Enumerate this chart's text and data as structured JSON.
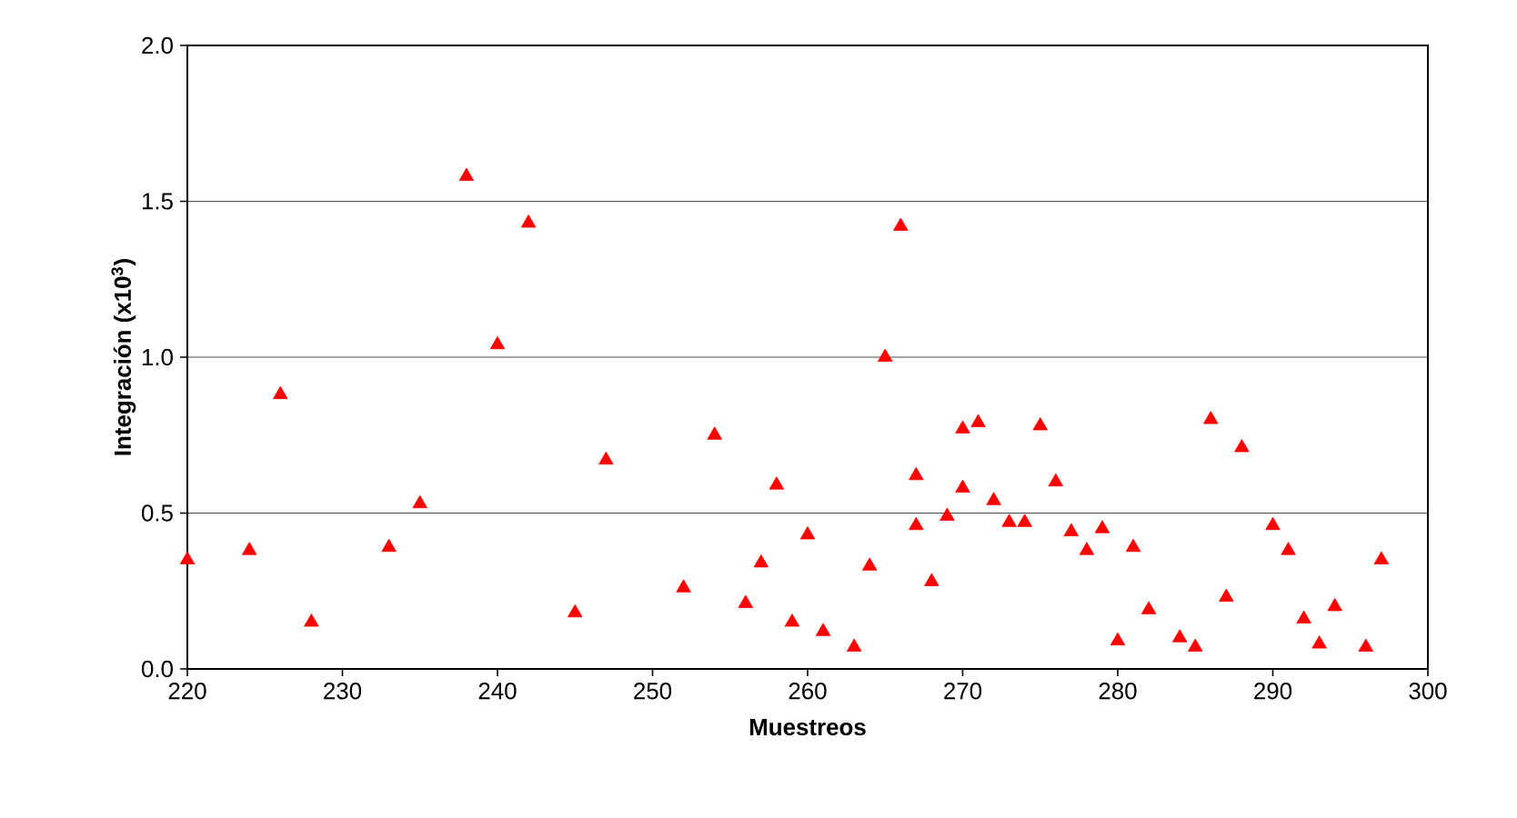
{
  "chart_data": {
    "type": "scatter",
    "xlabel": "Muestreos",
    "ylabel": "Integración (x10$^{3}$)",
    "xlim": [
      220,
      300
    ],
    "ylim": [
      0,
      2.0
    ],
    "xticks": [
      220,
      230,
      240,
      250,
      260,
      270,
      280,
      290,
      300
    ],
    "yticks": [
      {
        "value": 0,
        "label": "0.0"
      },
      {
        "value": 0.5,
        "label": "0.5"
      },
      {
        "value": 1.0,
        "label": "1.0"
      },
      {
        "value": 1.5,
        "label": "1.5"
      },
      {
        "value": 2.0,
        "label": "2.0"
      }
    ],
    "grid": "y",
    "marker": "triangle",
    "series": [
      {
        "color": "#ff0000",
        "x": [
          220,
          224,
          226,
          228,
          233,
          235,
          238,
          240,
          242,
          245,
          247,
          252,
          254,
          256,
          257,
          258,
          259,
          260,
          261,
          263,
          264,
          265,
          266,
          267,
          267,
          268,
          269,
          270,
          270,
          271,
          272,
          273,
          274,
          275,
          276,
          277,
          278,
          279,
          280,
          281,
          282,
          284,
          285,
          286,
          287,
          288,
          290,
          291,
          292,
          293,
          294,
          296,
          297
        ],
        "values": [
          0.35,
          0.38,
          0.88,
          0.15,
          0.39,
          0.53,
          1.58,
          1.04,
          1.43,
          0.18,
          0.67,
          0.26,
          0.75,
          0.21,
          0.34,
          0.59,
          0.15,
          0.43,
          0.12,
          0.07,
          0.33,
          1.0,
          1.42,
          0.62,
          0.46,
          0.28,
          0.49,
          0.77,
          0.58,
          0.79,
          0.54,
          0.47,
          0.47,
          0.78,
          0.6,
          0.44,
          0.38,
          0.45,
          0.09,
          0.39,
          0.19,
          0.1,
          0.07,
          0.8,
          0.23,
          0.71,
          0.46,
          0.38,
          0.16,
          0.08,
          0.2,
          0.07,
          0.35
        ]
      }
    ]
  }
}
